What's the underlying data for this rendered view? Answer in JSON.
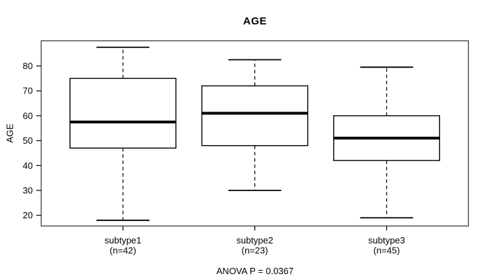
{
  "chart_data": {
    "type": "boxplot",
    "title": "AGE",
    "ylabel": "AGE",
    "xlabel": "",
    "ylim": [
      15.7,
      90.1
    ],
    "yticks": [
      20,
      30,
      40,
      50,
      60,
      70,
      80
    ],
    "grid": false,
    "categories": [
      "subtype1",
      "subtype2",
      "subtype3"
    ],
    "category_sublabels": [
      "(n=42)",
      "(n=23)",
      "(n=45)"
    ],
    "series": [
      {
        "name": "subtype1",
        "n": 42,
        "whisker_low": 18,
        "q1": 47,
        "median": 57.5,
        "q3": 75,
        "whisker_high": 87.5
      },
      {
        "name": "subtype2",
        "n": 23,
        "whisker_low": 30,
        "q1": 48,
        "median": 61,
        "q3": 72,
        "whisker_high": 82.5
      },
      {
        "name": "subtype3",
        "n": 45,
        "whisker_low": 19,
        "q1": 42,
        "median": 51,
        "q3": 60,
        "whisker_high": 79.5
      }
    ],
    "annotation": "ANOVA P = 0.0367",
    "colors": {
      "line": "#000000",
      "frame": "#3c3c3c",
      "background": "#ffffff"
    }
  }
}
